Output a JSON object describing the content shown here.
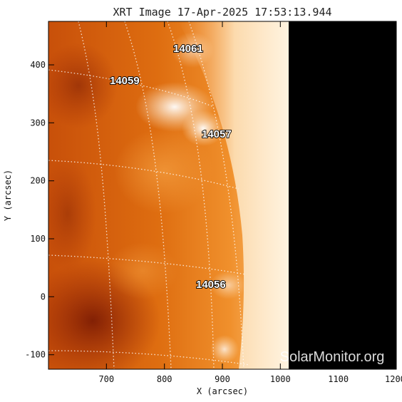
{
  "image": {
    "title": "XRT Image 17-Apr-2025 17:53:13.944",
    "xlabel": "X (arcsec)",
    "ylabel": "Y (arcsec)",
    "x_ticks": [
      "700",
      "800",
      "900",
      "1000",
      "1100",
      "1200"
    ],
    "y_ticks": [
      "400",
      "300",
      "200",
      "100",
      "0",
      "-100"
    ],
    "x_range": [
      600,
      1200
    ],
    "y_range": [
      -125,
      475
    ],
    "regions": [
      {
        "id": "14061",
        "x": 840,
        "y": 428
      },
      {
        "id": "14059",
        "x": 740,
        "y": 375
      },
      {
        "id": "14057",
        "x": 895,
        "y": 280
      },
      {
        "id": "14056",
        "x": 870,
        "y": 20
      }
    ],
    "watermark": "SolarMonitor.org",
    "colors": {
      "disk_dark": "#9a2606",
      "disk_mid": "#e0700e",
      "limb_bright": "#fff3dc",
      "space": "#000000"
    }
  }
}
